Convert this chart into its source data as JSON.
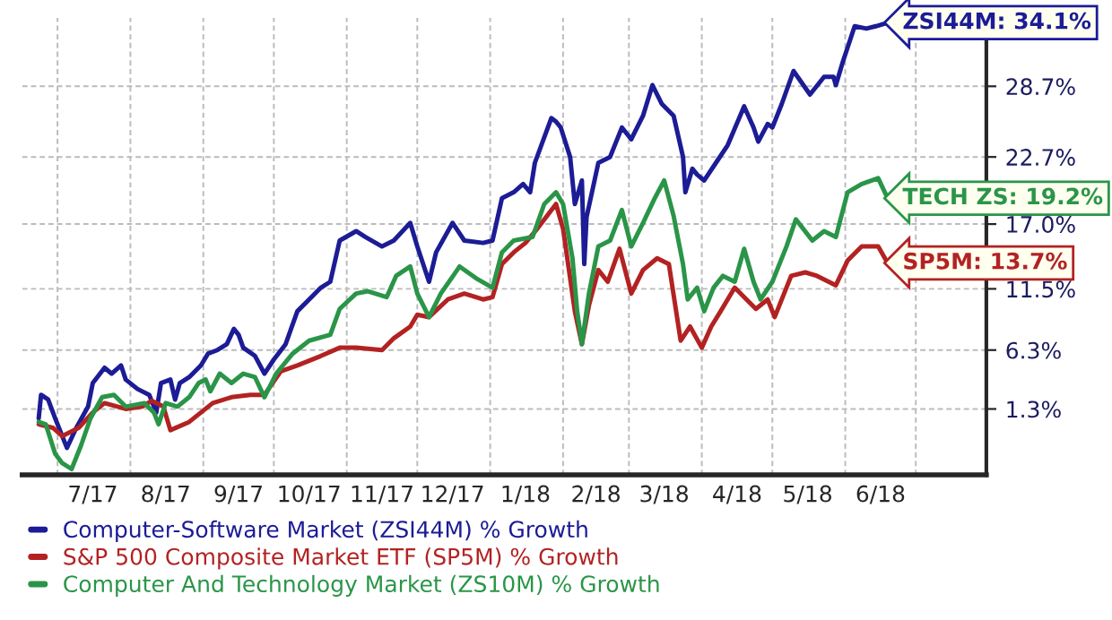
{
  "chart_data": {
    "type": "line",
    "xlim": [
      "2017-06-16",
      "2018-07-31"
    ],
    "xticks": [
      {
        "value": "2017-07-01",
        "label": null
      },
      {
        "value": "2017-07-16",
        "label": "7/17"
      },
      {
        "value": "2017-08-01",
        "label": null
      },
      {
        "value": "2017-08-16",
        "label": "8/17"
      },
      {
        "value": "2017-09-01",
        "label": null
      },
      {
        "value": "2017-09-16",
        "label": "9/17"
      },
      {
        "value": "2017-10-01",
        "label": null
      },
      {
        "value": "2017-10-16",
        "label": "10/17"
      },
      {
        "value": "2017-11-01",
        "label": null
      },
      {
        "value": "2017-11-16",
        "label": "11/17"
      },
      {
        "value": "2017-12-01",
        "label": null
      },
      {
        "value": "2017-12-16",
        "label": "12/17"
      },
      {
        "value": "2018-01-01",
        "label": null
      },
      {
        "value": "2018-01-16",
        "label": "1/18"
      },
      {
        "value": "2018-02-01",
        "label": null
      },
      {
        "value": "2018-02-15",
        "label": "2/18"
      },
      {
        "value": "2018-03-01",
        "label": null
      },
      {
        "value": "2018-03-16",
        "label": "3/18"
      },
      {
        "value": "2018-04-01",
        "label": null
      },
      {
        "value": "2018-04-16",
        "label": "4/18"
      },
      {
        "value": "2018-05-01",
        "label": null
      },
      {
        "value": "2018-05-16",
        "label": "5/18"
      },
      {
        "value": "2018-06-01",
        "label": null
      },
      {
        "value": "2018-06-16",
        "label": "6/18"
      },
      {
        "value": "2018-07-01",
        "label": null
      }
    ],
    "ylim": [
      -4.3,
      34.5
    ],
    "yticks": [
      {
        "value": 1.3,
        "label": "1.3%"
      },
      {
        "value": 6.3,
        "label": "6.3%"
      },
      {
        "value": 11.5,
        "label": "11.5%"
      },
      {
        "value": 17.0,
        "label": "17.0%"
      },
      {
        "value": 22.7,
        "label": "22.7%"
      },
      {
        "value": 28.7,
        "label": "28.7%"
      }
    ],
    "grid": true,
    "legend": "bottom",
    "marker": "none",
    "line_style": "solid",
    "series": [
      {
        "name": "Computer-Software Market (ZSI44M) % Growth",
        "color": "#1c1c96",
        "x": [
          "2017-06-23",
          "2017-06-24",
          "2017-06-27",
          "2017-06-30",
          "2017-07-05",
          "2017-07-09",
          "2017-07-14",
          "2017-07-16",
          "2017-07-21",
          "2017-07-24",
          "2017-07-28",
          "2017-07-30",
          "2017-08-04",
          "2017-08-09",
          "2017-08-12",
          "2017-08-14",
          "2017-08-18",
          "2017-08-20",
          "2017-08-22",
          "2017-08-26",
          "2017-08-31",
          "2017-09-03",
          "2017-09-07",
          "2017-09-11",
          "2017-09-14",
          "2017-09-16",
          "2017-09-18",
          "2017-09-23",
          "2017-09-27",
          "2017-10-01",
          "2017-10-06",
          "2017-10-11",
          "2017-10-16",
          "2017-10-21",
          "2017-10-25",
          "2017-10-29",
          "2017-11-05",
          "2017-11-09",
          "2017-11-16",
          "2017-11-21",
          "2017-11-28",
          "2017-12-01",
          "2017-12-06",
          "2017-12-09",
          "2017-12-16",
          "2017-12-21",
          "2017-12-29",
          "2018-01-02",
          "2018-01-06",
          "2018-01-11",
          "2018-01-15",
          "2018-01-18",
          "2018-01-20",
          "2018-01-27",
          "2018-01-29",
          "2018-01-31",
          "2018-02-04",
          "2018-02-06",
          "2018-02-09",
          "2018-02-10",
          "2018-02-11",
          "2018-02-16",
          "2018-02-21",
          "2018-02-26",
          "2018-03-02",
          "2018-03-07",
          "2018-03-11",
          "2018-03-15",
          "2018-03-20",
          "2018-03-24",
          "2018-03-25",
          "2018-03-28",
          "2018-03-30",
          "2018-04-02",
          "2018-04-07",
          "2018-04-12",
          "2018-04-19",
          "2018-04-23",
          "2018-04-25",
          "2018-04-29",
          "2018-05-01",
          "2018-05-05",
          "2018-05-10",
          "2018-05-17",
          "2018-05-23",
          "2018-05-27",
          "2018-05-28",
          "2018-05-31",
          "2018-06-05",
          "2018-06-10",
          "2018-06-14",
          "2018-06-19"
        ],
        "values": [
          0.5,
          2.5,
          2.1,
          0.5,
          -2.0,
          -0.3,
          1.5,
          3.5,
          4.8,
          4.3,
          5.0,
          3.8,
          3.0,
          2.5,
          1.0,
          3.5,
          3.8,
          2.1,
          3.5,
          4.0,
          5.0,
          6.0,
          6.3,
          6.8,
          8.1,
          7.6,
          6.5,
          5.8,
          4.3,
          5.5,
          6.8,
          9.6,
          10.6,
          11.6,
          12.1,
          15.6,
          16.4,
          15.9,
          15.1,
          15.6,
          17.1,
          15.1,
          12.1,
          14.6,
          17.1,
          15.6,
          15.4,
          15.6,
          19.2,
          19.7,
          20.4,
          19.7,
          22.2,
          26.0,
          25.7,
          25.2,
          22.7,
          18.7,
          20.7,
          13.6,
          17.6,
          22.2,
          22.7,
          25.2,
          24.2,
          26.2,
          28.8,
          27.2,
          26.2,
          22.7,
          19.7,
          21.7,
          21.2,
          20.7,
          22.2,
          23.7,
          27.0,
          25.2,
          24.0,
          25.5,
          25.2,
          27.2,
          30.0,
          28.0,
          29.5,
          29.5,
          28.8,
          30.8,
          33.8,
          33.6,
          33.8,
          34.1
        ]
      },
      {
        "name": "S&P 500 Composite Market ETF (SP5M) % Growth",
        "color": "#b32222",
        "x": [
          "2017-06-23",
          "2017-06-29",
          "2017-07-03",
          "2017-07-10",
          "2017-07-16",
          "2017-07-21",
          "2017-07-30",
          "2017-08-06",
          "2017-08-10",
          "2017-08-15",
          "2017-08-18",
          "2017-08-26",
          "2017-08-31",
          "2017-09-05",
          "2017-09-13",
          "2017-09-21",
          "2017-09-27",
          "2017-10-04",
          "2017-10-11",
          "2017-10-21",
          "2017-10-29",
          "2017-11-05",
          "2017-11-16",
          "2017-11-21",
          "2017-11-28",
          "2017-12-01",
          "2017-12-06",
          "2017-12-14",
          "2017-12-21",
          "2017-12-29",
          "2018-01-02",
          "2018-01-06",
          "2018-01-11",
          "2018-01-16",
          "2018-01-21",
          "2018-01-29",
          "2018-02-01",
          "2018-02-06",
          "2018-02-09",
          "2018-02-12",
          "2018-02-16",
          "2018-02-20",
          "2018-02-25",
          "2018-03-02",
          "2018-03-07",
          "2018-03-13",
          "2018-03-18",
          "2018-03-23",
          "2018-03-27",
          "2018-04-01",
          "2018-04-05",
          "2018-04-09",
          "2018-04-15",
          "2018-04-20",
          "2018-04-24",
          "2018-04-29",
          "2018-05-02",
          "2018-05-09",
          "2018-05-15",
          "2018-05-20",
          "2018-05-28",
          "2018-06-02",
          "2018-06-08",
          "2018-06-15",
          "2018-06-19"
        ],
        "values": [
          0.0,
          -0.3,
          -1.0,
          -0.3,
          1.0,
          1.8,
          1.3,
          1.5,
          2.0,
          1.5,
          -0.5,
          0.2,
          1.0,
          1.8,
          2.3,
          2.5,
          2.5,
          4.5,
          5.0,
          5.8,
          6.5,
          6.5,
          6.3,
          7.3,
          8.3,
          9.3,
          9.1,
          10.6,
          11.1,
          10.6,
          10.8,
          13.6,
          14.6,
          15.4,
          16.6,
          18.7,
          16.6,
          9.6,
          6.8,
          10.1,
          13.1,
          12.1,
          14.9,
          11.1,
          13.1,
          14.1,
          13.6,
          7.1,
          8.3,
          6.5,
          8.3,
          9.6,
          11.6,
          10.6,
          9.8,
          10.6,
          9.1,
          12.6,
          12.9,
          12.6,
          11.8,
          13.9,
          15.1,
          15.1,
          13.7
        ]
      },
      {
        "name": "Computer And Technology Market (ZS10M) % Growth",
        "color": "#2a9548",
        "x": [
          "2017-06-23",
          "2017-06-26",
          "2017-06-30",
          "2017-07-03",
          "2017-07-07",
          "2017-07-11",
          "2017-07-15",
          "2017-07-20",
          "2017-07-25",
          "2017-07-30",
          "2017-08-07",
          "2017-08-11",
          "2017-08-13",
          "2017-08-16",
          "2017-08-21",
          "2017-08-26",
          "2017-08-30",
          "2017-09-02",
          "2017-09-04",
          "2017-09-08",
          "2017-09-13",
          "2017-09-18",
          "2017-09-23",
          "2017-09-27",
          "2017-10-02",
          "2017-10-09",
          "2017-10-16",
          "2017-10-25",
          "2017-10-29",
          "2017-11-05",
          "2017-11-10",
          "2017-11-18",
          "2017-11-22",
          "2017-11-28",
          "2017-12-01",
          "2017-12-06",
          "2017-12-11",
          "2017-12-19",
          "2017-12-26",
          "2018-01-02",
          "2018-01-06",
          "2018-01-11",
          "2018-01-19",
          "2018-01-24",
          "2018-01-29",
          "2018-02-01",
          "2018-02-05",
          "2018-02-07",
          "2018-02-09",
          "2018-02-12",
          "2018-02-16",
          "2018-02-21",
          "2018-02-26",
          "2018-03-02",
          "2018-03-07",
          "2018-03-12",
          "2018-03-16",
          "2018-03-20",
          "2018-03-24",
          "2018-03-26",
          "2018-03-30",
          "2018-04-02",
          "2018-04-06",
          "2018-04-10",
          "2018-04-15",
          "2018-04-19",
          "2018-04-23",
          "2018-04-26",
          "2018-05-01",
          "2018-05-07",
          "2018-05-11",
          "2018-05-18",
          "2018-05-23",
          "2018-05-28",
          "2018-06-02",
          "2018-06-08",
          "2018-06-15",
          "2018-06-19"
        ],
        "values": [
          0.2,
          0.0,
          -2.5,
          -3.3,
          -3.8,
          -1.8,
          0.5,
          2.3,
          2.5,
          1.5,
          1.8,
          1.0,
          0.0,
          1.8,
          1.5,
          2.3,
          3.5,
          3.8,
          2.8,
          4.3,
          3.5,
          4.3,
          4.0,
          2.3,
          4.3,
          6.0,
          7.1,
          7.6,
          9.8,
          11.1,
          11.3,
          10.8,
          12.6,
          13.4,
          11.1,
          9.1,
          11.1,
          13.4,
          12.4,
          11.6,
          14.6,
          15.6,
          15.9,
          18.7,
          19.7,
          18.7,
          14.1,
          9.6,
          6.8,
          11.1,
          15.1,
          15.6,
          18.2,
          15.1,
          17.1,
          19.2,
          20.7,
          17.7,
          13.6,
          10.6,
          11.6,
          9.6,
          11.6,
          12.6,
          12.1,
          14.9,
          12.1,
          10.6,
          12.1,
          15.1,
          17.4,
          15.6,
          16.4,
          15.9,
          19.7,
          20.4,
          20.9,
          19.2
        ]
      }
    ],
    "annotations": [
      {
        "text": "ZSI44M: 34.1%",
        "x": "2018-06-19",
        "y": 34.1
      },
      {
        "text": "SP5M: 13.7%",
        "x": "2018-06-19",
        "y": 13.7
      },
      {
        "text": "TECH ZS: 19.2%",
        "x": "2018-06-19",
        "y": 19.2
      }
    ]
  }
}
